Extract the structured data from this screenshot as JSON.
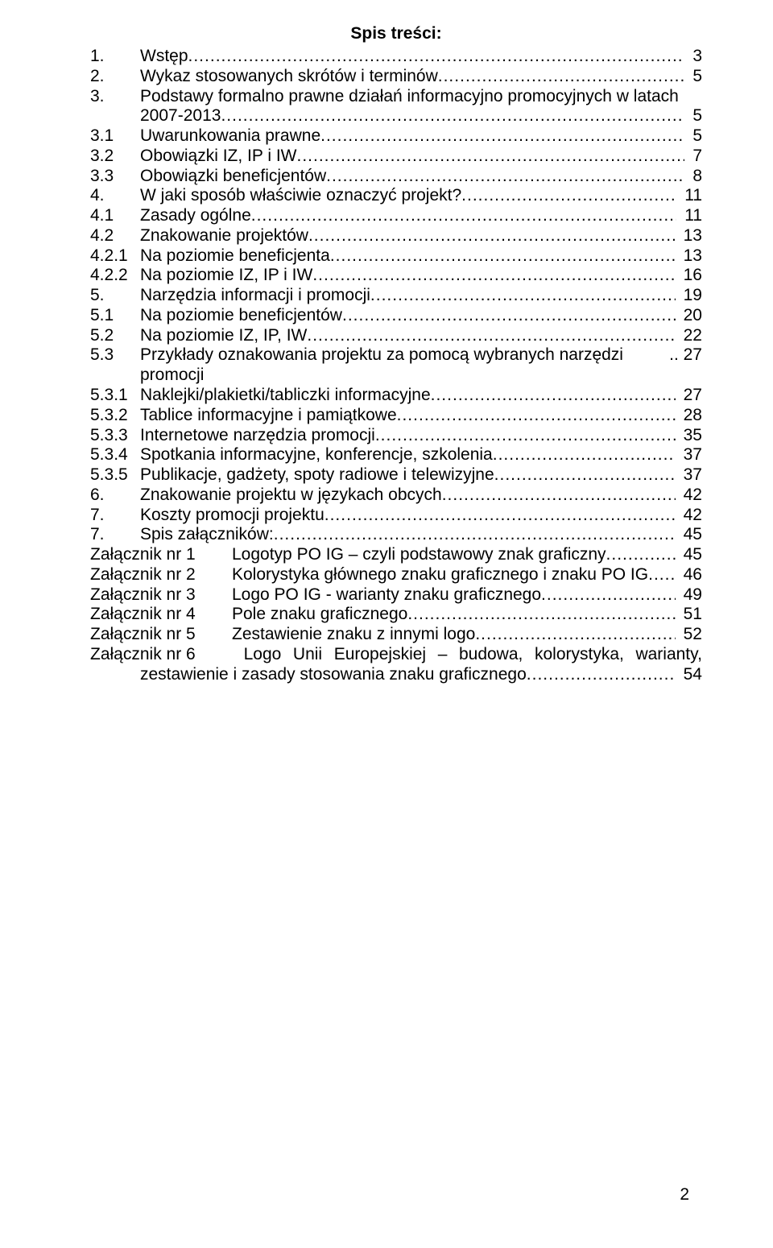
{
  "title": "Spis treści:",
  "page_number": "2",
  "entries": [
    {
      "num": "1.",
      "label": "Wstęp",
      "page": "3"
    },
    {
      "num": "2.",
      "label": "Wykaz stosowanych skrótów i terminów",
      "page": "5"
    },
    {
      "num": "3.",
      "label": "Podstawy formalno prawne działań informacyjno promocyjnych w latach 2007-2013",
      "page": "5",
      "wrap": true
    },
    {
      "num": "3.1",
      "label": "Uwarunkowania prawne",
      "page": "5"
    },
    {
      "num": "3.2",
      "label": "Obowiązki IZ, IP i IW",
      "page": "7"
    },
    {
      "num": "3.3",
      "label": "Obowiązki beneficjentów",
      "page": "8"
    },
    {
      "num": "4.",
      "label": "W jaki sposób właściwie oznaczyć projekt?",
      "page": "11"
    },
    {
      "num": "4.1",
      "label": "Zasady ogólne",
      "page": "11"
    },
    {
      "num": "4.2",
      "label": "Znakowanie projektów",
      "page": "13"
    },
    {
      "num": "4.2.1",
      "label": "Na poziomie beneficjenta",
      "page": "13"
    },
    {
      "num": "4.2.2",
      "label": "Na poziomie IZ, IP i IW",
      "page": "16"
    },
    {
      "num": "5.",
      "label": "Narzędzia informacji i promocji",
      "page": "19"
    },
    {
      "num": "5.1",
      "label": "Na poziomie beneficjentów",
      "page": "20"
    },
    {
      "num": "5.2",
      "label": "Na poziomie IZ, IP, IW",
      "page": "22"
    },
    {
      "num": "5.3",
      "label": "Przykłady oznakowania projektu za pomocą wybranych narzędzi promocji",
      "page": "27",
      "tight": true
    },
    {
      "num": "5.3.1",
      "label": "Naklejki/plakietki/tabliczki informacyjne",
      "page": "27"
    },
    {
      "num": "5.3.2",
      "label": "Tablice informacyjne i pamiątkowe",
      "page": "28"
    },
    {
      "num": "5.3.3",
      "label": "Internetowe narzędzia promocji",
      "page": "35"
    },
    {
      "num": "5.3.4",
      "label": "Spotkania informacyjne, konferencje, szkolenia",
      "page": "37"
    },
    {
      "num": "5.3.5",
      "label": "Publikacje, gadżety, spoty radiowe i telewizyjne",
      "page": "37"
    },
    {
      "num": "6.",
      "label": "Znakowanie projektu w językach obcych",
      "page": "42"
    },
    {
      "num": "7.",
      "label": "Koszty promocji projektu",
      "page": "42"
    },
    {
      "num": "7.",
      "label": "Spis załączników:",
      "page": "45"
    }
  ],
  "attachments": [
    {
      "prefix": "Załącznik nr 1",
      "label": "Logotyp PO IG – czyli podstawowy znak graficzny",
      "page": "45"
    },
    {
      "prefix": "Załącznik nr 2",
      "label": "Kolorystyka głównego znaku graficznego i znaku PO IG",
      "page": "46"
    },
    {
      "prefix": "Załącznik nr 3",
      "label": "Logo PO IG - warianty znaku graficznego",
      "page": "49"
    },
    {
      "prefix": "Załącznik nr 4",
      "label": "Pole znaku graficznego",
      "page": "51"
    },
    {
      "prefix": "Załącznik nr 5",
      "label": "Zestawienie znaku z innymi logo",
      "page": "52"
    }
  ],
  "last_attachment": {
    "prefix": "Załącznik nr 6",
    "line1_words": [
      "Logo",
      "Unii",
      "Europejskiej",
      "–",
      "budowa,",
      "kolorystyka,",
      "warianty,"
    ],
    "line2": "zestawienie i zasady stosowania znaku graficznego",
    "page": "54"
  },
  "style": {
    "font_family": "Arial",
    "font_size_pt": 16,
    "text_color": "#000000",
    "background_color": "#ffffff"
  }
}
